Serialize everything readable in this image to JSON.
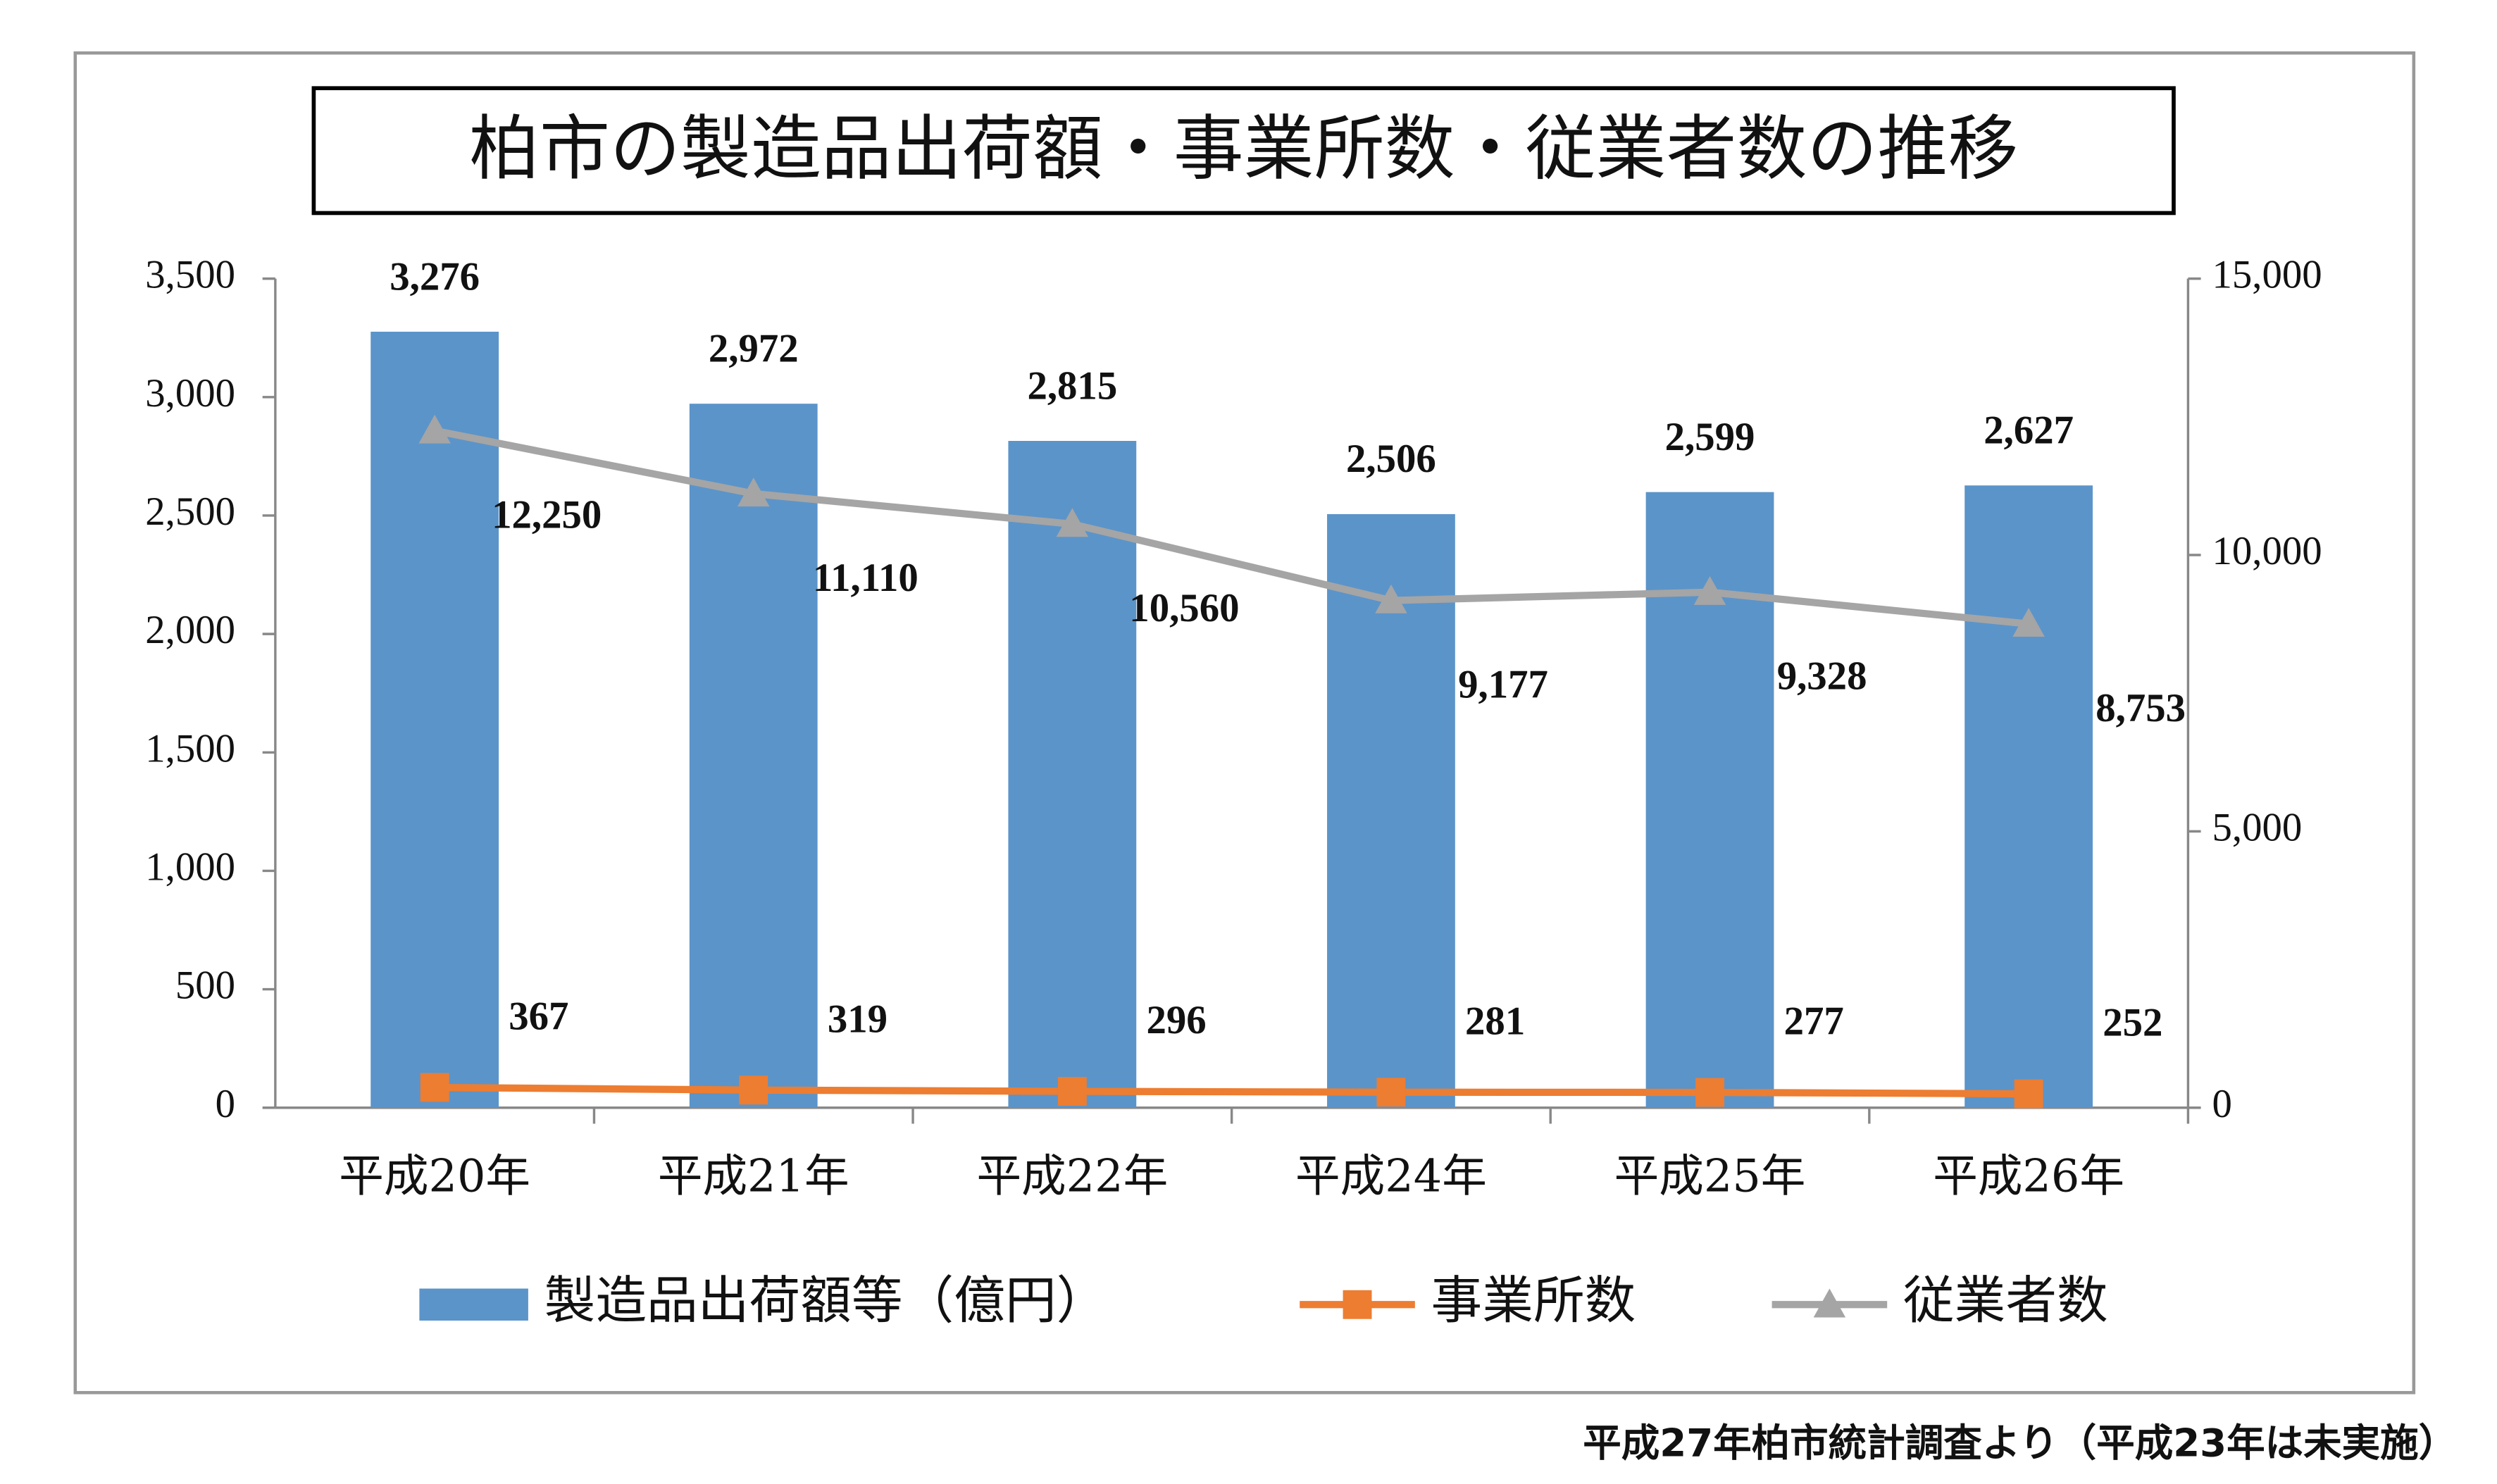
{
  "chart_data": {
    "type": "bar",
    "title": "柏市の製造品出荷額・事業所数・従業者数の推移",
    "footnote": "平成27年柏市統計調査より（平成23年は未実施）",
    "categories": [
      "平成20年",
      "平成21年",
      "平成22年",
      "平成24年",
      "平成25年",
      "平成26年"
    ],
    "series": [
      {
        "name": "製造品出荷額等（億円）",
        "type": "bar",
        "color": "#5b94c9",
        "values": [
          3276,
          2972,
          2815,
          2506,
          2599,
          2627
        ],
        "value_labels": [
          "3,276",
          "2,972",
          "2,815",
          "2,506",
          "2,599",
          "2,627"
        ]
      },
      {
        "name": "事業所数",
        "type": "line",
        "marker": "square",
        "axis": "y2",
        "color": "#ed7d31",
        "values": [
          367,
          319,
          296,
          281,
          277,
          252
        ]
      },
      {
        "name": "従業者数",
        "type": "line",
        "marker": "triangle",
        "axis": "y2",
        "color": "#a5a5a5",
        "values": [
          12250,
          11110,
          10560,
          9177,
          9328,
          8753
        ],
        "value_labels": [
          "12,250",
          "11,110",
          "10,560",
          "9,177",
          "9,328",
          "8,753"
        ]
      }
    ],
    "ylim": [
      0,
      3500
    ],
    "yticks": [
      0,
      500,
      {
        "value": 1000,
        "label": "1,000"
      },
      {
        "value": 1500,
        "label": "1,500"
      },
      {
        "value": 2000,
        "label": "2,000"
      },
      {
        "value": 2500,
        "label": "2,500"
      },
      {
        "value": 3000,
        "label": "3,000"
      },
      {
        "value": 3500,
        "label": "3,500"
      }
    ],
    "y2lim": [
      0,
      15000
    ],
    "y2ticks": [
      0,
      {
        "value": 5000,
        "label": "5,000"
      },
      {
        "value": 10000,
        "label": "10,000"
      },
      {
        "value": 15000,
        "label": "15,000"
      }
    ],
    "legend": "bottom"
  }
}
